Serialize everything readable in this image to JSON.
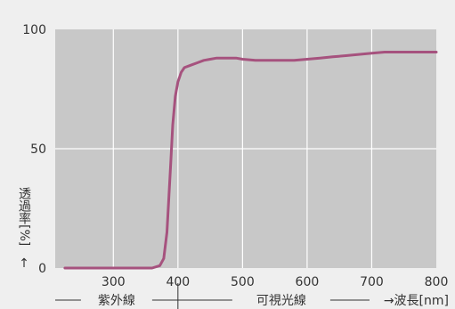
{
  "chart_data": {
    "type": "line",
    "title": "",
    "xlabel": "→波長[nm]",
    "ylabel": "透過率[%]",
    "ylabel_arrow": "↑",
    "xlim": [
      210,
      800
    ],
    "ylim": [
      0,
      100
    ],
    "x_ticks": [
      300,
      400,
      500,
      600,
      700,
      800
    ],
    "y_ticks": [
      0,
      50,
      100
    ],
    "grid": true,
    "regions": [
      {
        "label": "紫外線",
        "from": 210,
        "to": 400
      },
      {
        "label": "可視光線",
        "from": 400,
        "to": 800
      }
    ],
    "colors": {
      "line": "#a6527e",
      "plot_bg": "#c8c8c8",
      "grid": "#ffffff",
      "page_bg": "#efefef"
    },
    "series": [
      {
        "x": [
          225,
          300,
          360,
          372,
          378,
          383,
          386,
          389,
          392,
          396,
          400,
          405,
          410,
          420,
          430,
          440,
          450,
          460,
          470,
          480,
          490,
          500,
          520,
          540,
          560,
          580,
          600,
          620,
          640,
          660,
          680,
          700,
          720,
          750,
          800
        ],
        "y": [
          0,
          0,
          0,
          1,
          4,
          15,
          30,
          45,
          60,
          72,
          78,
          82,
          84,
          85,
          86,
          87,
          87.5,
          88,
          88,
          88,
          88,
          87.5,
          87,
          87,
          87,
          87,
          87.5,
          88,
          88.5,
          89,
          89.5,
          90,
          90.5,
          90.5,
          90.5
        ]
      }
    ]
  }
}
